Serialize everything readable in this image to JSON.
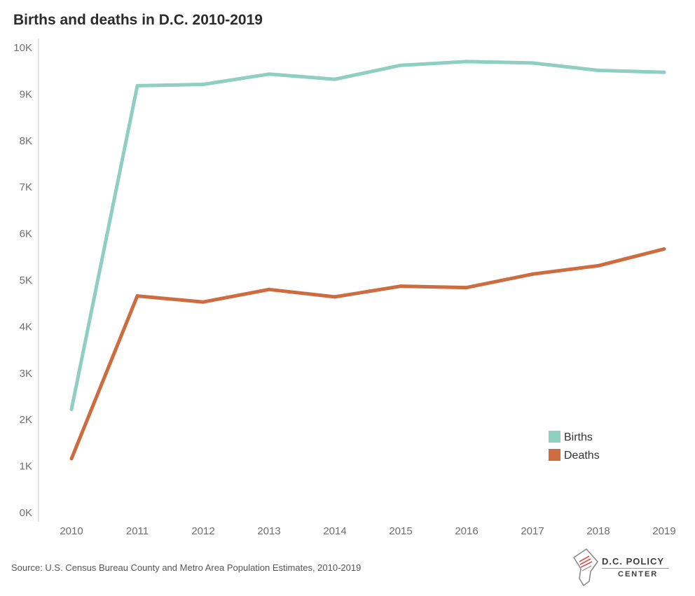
{
  "title": "Births and deaths in D.C. 2010-2019",
  "source": "Source: U.S. Census Bureau County and Metro Area Population Estimates, 2010-2019",
  "logo": {
    "line1": "D.C. POLICY",
    "line2": "CENTER",
    "icon": "dc-map-icon"
  },
  "chart_data": {
    "type": "line",
    "title": "Births and deaths in D.C. 2010-2019",
    "xlabel": "",
    "ylabel": "",
    "categories": [
      "2010",
      "2011",
      "2012",
      "2013",
      "2014",
      "2015",
      "2016",
      "2017",
      "2018",
      "2019"
    ],
    "ylim": [
      0,
      10000
    ],
    "yticks": [
      0,
      1000,
      2000,
      3000,
      4000,
      5000,
      6000,
      7000,
      8000,
      9000,
      10000
    ],
    "ytick_labels": [
      "0K",
      "1K",
      "2K",
      "3K",
      "4K",
      "5K",
      "6K",
      "7K",
      "8K",
      "9K",
      "10K"
    ],
    "grid": false,
    "legend_position": "bottom-right",
    "series": [
      {
        "name": "Births",
        "color": "#8ecfc2",
        "values": [
          2220,
          9180,
          9210,
          9430,
          9320,
          9620,
          9700,
          9670,
          9510,
          9470
        ]
      },
      {
        "name": "Deaths",
        "color": "#cc6c3f",
        "values": [
          1160,
          4660,
          4530,
          4800,
          4640,
          4870,
          4840,
          5130,
          5310,
          5670
        ]
      }
    ]
  }
}
